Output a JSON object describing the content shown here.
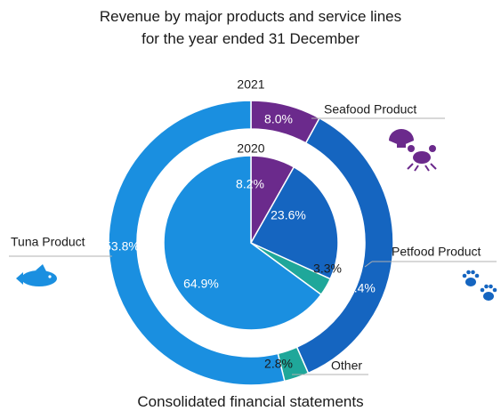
{
  "title_line1": "Revenue by major products and service lines",
  "title_line2": "for the year ended 31 December",
  "footer": "Consolidated financial statements",
  "colors": {
    "tuna": "#1a8fe0",
    "seafood": "#6b2a8c",
    "petfood": "#1565c0",
    "other": "#1fa79a",
    "leader": "#b0b0b0",
    "label_text": "#1a1a1a",
    "slice_text": "#ffffff"
  },
  "icons": {
    "tuna": "fish-icon",
    "seafood": "shell-crab-icon",
    "petfood": "paw-prints-icon"
  },
  "chart_data": {
    "type": "pie",
    "style": "nested donut (outer ring 2021, inner pie 2020)",
    "categories": [
      "Tuna Product",
      "Seafood Product",
      "Petfood Product",
      "Other"
    ],
    "category_labels": {
      "Tuna Product": "Tuna Product",
      "Seafood Product": "Seafood Product",
      "Petfood Product": "Petfood Product",
      "Other": "Other"
    },
    "series": [
      {
        "name": "2021",
        "ring": "outer",
        "values": [
          53.8,
          8.0,
          35.4,
          2.8
        ],
        "labels": [
          "53.8%",
          "8.0%",
          "35.4%",
          "2.8%"
        ]
      },
      {
        "name": "2020",
        "ring": "inner",
        "values": [
          64.9,
          8.2,
          23.6,
          3.3
        ],
        "labels": [
          "64.9%",
          "8.2%",
          "23.6%",
          "3.3%"
        ]
      }
    ],
    "title": "Revenue by major products and service lines for the year ended 31 December"
  }
}
